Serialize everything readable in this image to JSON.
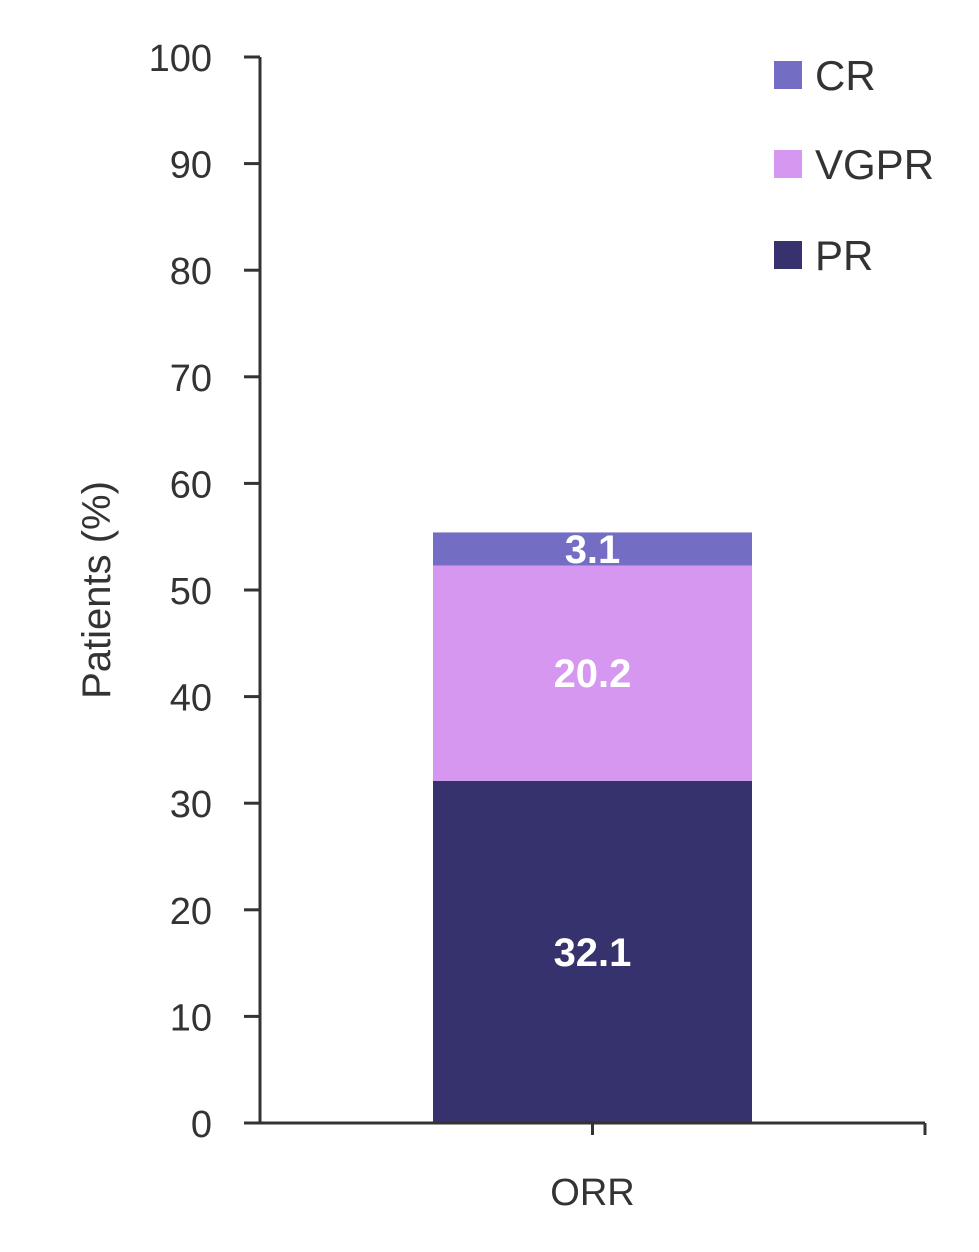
{
  "chart_data": {
    "type": "bar",
    "stacked": true,
    "categories": [
      "ORR"
    ],
    "series": [
      {
        "name": "PR",
        "values": [
          32.1
        ],
        "color": "#36326d",
        "label": "32.1"
      },
      {
        "name": "VGPR",
        "values": [
          20.2
        ],
        "color": "#d597ef",
        "label": "20.2"
      },
      {
        "name": "CR",
        "values": [
          3.1
        ],
        "color": "#736ec3",
        "label": "3.1"
      }
    ],
    "legend_order": [
      "CR",
      "VGPR",
      "PR"
    ],
    "legend_position": "top-right",
    "ylabel": "Patients (%)",
    "ylim": [
      0,
      100
    ],
    "yticks": [
      "0",
      "10",
      "20",
      "30",
      "40",
      "50",
      "60",
      "70",
      "80",
      "90",
      "100"
    ],
    "grid": false
  }
}
